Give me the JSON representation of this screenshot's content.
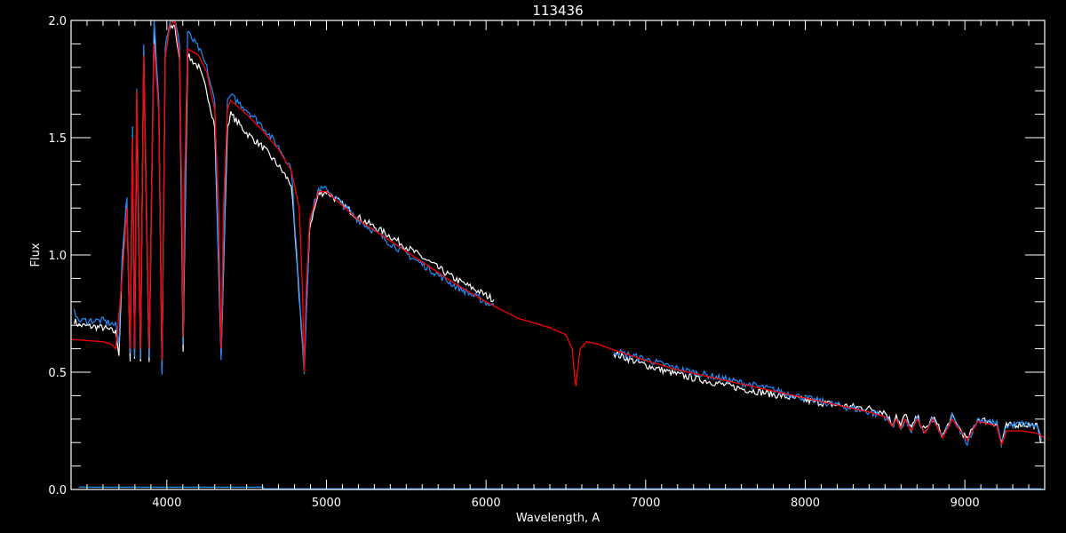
{
  "chart_data": {
    "type": "line",
    "title": "113436",
    "xlabel": "Wavelength, A",
    "ylabel": "Flux",
    "xlim": [
      3400,
      9500
    ],
    "ylim": [
      0.0,
      2.0
    ],
    "x_major_ticks": [
      4000,
      5000,
      6000,
      7000,
      8000,
      9000
    ],
    "x_tick_labels": [
      "4000",
      "5000",
      "6000",
      "7000",
      "8000",
      "9000"
    ],
    "x_minor_step": 100,
    "y_major_ticks": [
      0.0,
      0.5,
      1.0,
      1.5,
      2.0
    ],
    "y_tick_labels": [
      "0.0",
      "0.5",
      "1.0",
      "1.5",
      "2.0"
    ],
    "y_minor_step": 0.1,
    "grid": false,
    "background": "#000000",
    "axis_color": "#ffffff",
    "series": [
      {
        "color": "#ffffff",
        "segments": [
          [
            [
              3420,
              0.72
            ],
            [
              3450,
              0.7
            ],
            [
              3600,
              0.69
            ],
            [
              3680,
              0.67
            ],
            [
              3700,
              0.58
            ],
            [
              3720,
              0.95
            ],
            [
              3750,
              1.2
            ],
            [
              3770,
              0.56
            ],
            [
              3785,
              1.5
            ],
            [
              3798,
              0.56
            ],
            [
              3812,
              1.65
            ],
            [
              3835,
              0.55
            ],
            [
              3855,
              1.85
            ],
            [
              3889,
              0.55
            ],
            [
              3920,
              1.95
            ],
            [
              3950,
              1.6
            ],
            [
              3970,
              0.5
            ],
            [
              3990,
              1.85
            ],
            [
              4020,
              1.97
            ],
            [
              4050,
              1.98
            ],
            [
              4080,
              1.82
            ],
            [
              4102,
              0.6
            ],
            [
              4130,
              1.85
            ],
            [
              4200,
              1.8
            ],
            [
              4250,
              1.7
            ],
            [
              4300,
              1.55
            ],
            [
              4340,
              0.56
            ],
            [
              4380,
              1.55
            ],
            [
              4400,
              1.6
            ],
            [
              4500,
              1.52
            ],
            [
              4600,
              1.46
            ],
            [
              4700,
              1.38
            ],
            [
              4780,
              1.3
            ],
            [
              4861,
              0.52
            ],
            [
              4895,
              1.12
            ],
            [
              4950,
              1.26
            ],
            [
              5000,
              1.27
            ],
            [
              5200,
              1.16
            ],
            [
              5400,
              1.08
            ],
            [
              5600,
              0.99
            ],
            [
              5800,
              0.9
            ],
            [
              6050,
              0.81
            ]
          ],
          [
            [
              6800,
              0.58
            ],
            [
              7000,
              0.53
            ],
            [
              7200,
              0.49
            ],
            [
              7400,
              0.46
            ],
            [
              7600,
              0.43
            ],
            [
              7800,
              0.405
            ],
            [
              8000,
              0.38
            ],
            [
              8200,
              0.36
            ],
            [
              8400,
              0.345
            ],
            [
              8500,
              0.33
            ],
            [
              8545,
              0.28
            ],
            [
              8570,
              0.32
            ],
            [
              8598,
              0.27
            ],
            [
              8625,
              0.32
            ],
            [
              8665,
              0.26
            ],
            [
              8700,
              0.31
            ],
            [
              8750,
              0.25
            ],
            [
              8800,
              0.31
            ],
            [
              8862,
              0.23
            ],
            [
              8920,
              0.31
            ],
            [
              9015,
              0.21
            ],
            [
              9080,
              0.3
            ],
            [
              9150,
              0.29
            ],
            [
              9200,
              0.28
            ],
            [
              9229,
              0.2
            ],
            [
              9260,
              0.27
            ],
            [
              9350,
              0.28
            ],
            [
              9450,
              0.27
            ],
            [
              9480,
              0.2
            ]
          ]
        ]
      },
      {
        "color": "#1e8fff",
        "segments": [
          [
            [
              3420,
              0.78
            ],
            [
              3440,
              0.72
            ],
            [
              3600,
              0.72
            ],
            [
              3680,
              0.7
            ],
            [
              3700,
              0.62
            ],
            [
              3720,
              1.0
            ],
            [
              3750,
              1.25
            ],
            [
              3770,
              0.58
            ],
            [
              3785,
              1.55
            ],
            [
              3798,
              0.58
            ],
            [
              3812,
              1.7
            ],
            [
              3835,
              0.57
            ],
            [
              3855,
              1.9
            ],
            [
              3889,
              0.55
            ],
            [
              3920,
              2.0
            ],
            [
              3950,
              1.65
            ],
            [
              3970,
              0.5
            ],
            [
              3990,
              1.9
            ],
            [
              4020,
              2.0
            ],
            [
              4050,
              2.0
            ],
            [
              4080,
              1.9
            ],
            [
              4102,
              0.62
            ],
            [
              4130,
              1.95
            ],
            [
              4200,
              1.88
            ],
            [
              4250,
              1.8
            ],
            [
              4300,
              1.65
            ],
            [
              4340,
              0.55
            ],
            [
              4380,
              1.65
            ],
            [
              4400,
              1.68
            ],
            [
              4500,
              1.62
            ],
            [
              4600,
              1.55
            ],
            [
              4700,
              1.46
            ],
            [
              4780,
              1.37
            ],
            [
              4861,
              0.5
            ],
            [
              4895,
              1.15
            ],
            [
              4950,
              1.28
            ],
            [
              5000,
              1.28
            ],
            [
              5200,
              1.15
            ],
            [
              5400,
              1.05
            ],
            [
              5600,
              0.96
            ],
            [
              5800,
              0.87
            ],
            [
              6050,
              0.78
            ]
          ],
          [
            [
              6800,
              0.59
            ],
            [
              7000,
              0.555
            ],
            [
              7200,
              0.515
            ],
            [
              7400,
              0.485
            ],
            [
              7600,
              0.455
            ],
            [
              7800,
              0.425
            ],
            [
              8000,
              0.39
            ],
            [
              8200,
              0.36
            ],
            [
              8400,
              0.33
            ],
            [
              8500,
              0.31
            ],
            [
              8545,
              0.27
            ],
            [
              8570,
              0.3
            ],
            [
              8598,
              0.26
            ],
            [
              8625,
              0.3
            ],
            [
              8665,
              0.25
            ],
            [
              8700,
              0.3
            ],
            [
              8750,
              0.24
            ],
            [
              8800,
              0.3
            ],
            [
              8862,
              0.22
            ],
            [
              8920,
              0.31
            ],
            [
              9015,
              0.2
            ],
            [
              9080,
              0.3
            ],
            [
              9150,
              0.29
            ],
            [
              9200,
              0.28
            ],
            [
              9229,
              0.19
            ],
            [
              9260,
              0.27
            ],
            [
              9350,
              0.28
            ],
            [
              9450,
              0.27
            ],
            [
              9480,
              0.21
            ]
          ]
        ]
      },
      {
        "color": "#ff0000",
        "segments": [
          [
            [
              3400,
              0.64
            ],
            [
              3500,
              0.635
            ],
            [
              3600,
              0.63
            ],
            [
              3650,
              0.62
            ],
            [
              3680,
              0.6
            ],
            [
              3700,
              0.75
            ],
            [
              3720,
              0.9
            ],
            [
              3750,
              1.2
            ],
            [
              3770,
              0.6
            ],
            [
              3785,
              1.5
            ],
            [
              3798,
              0.6
            ],
            [
              3812,
              1.7
            ],
            [
              3835,
              0.6
            ],
            [
              3855,
              1.85
            ],
            [
              3889,
              0.6
            ],
            [
              3920,
              1.9
            ],
            [
              3950,
              1.6
            ],
            [
              3970,
              0.55
            ],
            [
              3990,
              1.85
            ],
            [
              4020,
              1.98
            ],
            [
              4050,
              2.0
            ],
            [
              4080,
              1.85
            ],
            [
              4095,
              1.2
            ],
            [
              4102,
              0.65
            ],
            [
              4110,
              1.3
            ],
            [
              4130,
              1.88
            ],
            [
              4200,
              1.85
            ],
            [
              4250,
              1.78
            ],
            [
              4300,
              1.62
            ],
            [
              4325,
              1.2
            ],
            [
              4340,
              0.6
            ],
            [
              4355,
              1.2
            ],
            [
              4380,
              1.62
            ],
            [
              4400,
              1.66
            ],
            [
              4500,
              1.6
            ],
            [
              4600,
              1.53
            ],
            [
              4700,
              1.45
            ],
            [
              4780,
              1.36
            ],
            [
              4830,
              1.2
            ],
            [
              4850,
              0.85
            ],
            [
              4861,
              0.5
            ],
            [
              4872,
              0.85
            ],
            [
              4895,
              1.15
            ],
            [
              4950,
              1.27
            ],
            [
              5000,
              1.27
            ],
            [
              5200,
              1.15
            ],
            [
              5400,
              1.06
            ],
            [
              5600,
              0.97
            ],
            [
              5800,
              0.88
            ],
            [
              6000,
              0.8
            ],
            [
              6200,
              0.73
            ],
            [
              6400,
              0.69
            ],
            [
              6500,
              0.66
            ],
            [
              6540,
              0.6
            ],
            [
              6555,
              0.48
            ],
            [
              6563,
              0.44
            ],
            [
              6572,
              0.5
            ],
            [
              6590,
              0.6
            ],
            [
              6630,
              0.63
            ],
            [
              6700,
              0.62
            ],
            [
              6800,
              0.595
            ],
            [
              7000,
              0.55
            ],
            [
              7200,
              0.51
            ],
            [
              7400,
              0.48
            ],
            [
              7600,
              0.45
            ],
            [
              7800,
              0.42
            ],
            [
              8000,
              0.39
            ],
            [
              8200,
              0.36
            ],
            [
              8400,
              0.33
            ],
            [
              8500,
              0.31
            ],
            [
              8545,
              0.27
            ],
            [
              8570,
              0.3
            ],
            [
              8598,
              0.26
            ],
            [
              8625,
              0.3
            ],
            [
              8665,
              0.25
            ],
            [
              8700,
              0.3
            ],
            [
              8750,
              0.24
            ],
            [
              8800,
              0.3
            ],
            [
              8862,
              0.22
            ],
            [
              8920,
              0.3
            ],
            [
              9015,
              0.21
            ],
            [
              9080,
              0.29
            ],
            [
              9150,
              0.28
            ],
            [
              9200,
              0.27
            ],
            [
              9229,
              0.19
            ],
            [
              9260,
              0.25
            ],
            [
              9350,
              0.25
            ],
            [
              9450,
              0.24
            ],
            [
              9500,
              0.22
            ]
          ]
        ]
      },
      {
        "color": "#1e8fff",
        "segments": [
          [
            [
              3450,
              0.01
            ],
            [
              4600,
              0.01
            ],
            [
              4610,
              0.003
            ],
            [
              9480,
              0.003
            ]
          ]
        ]
      }
    ]
  }
}
